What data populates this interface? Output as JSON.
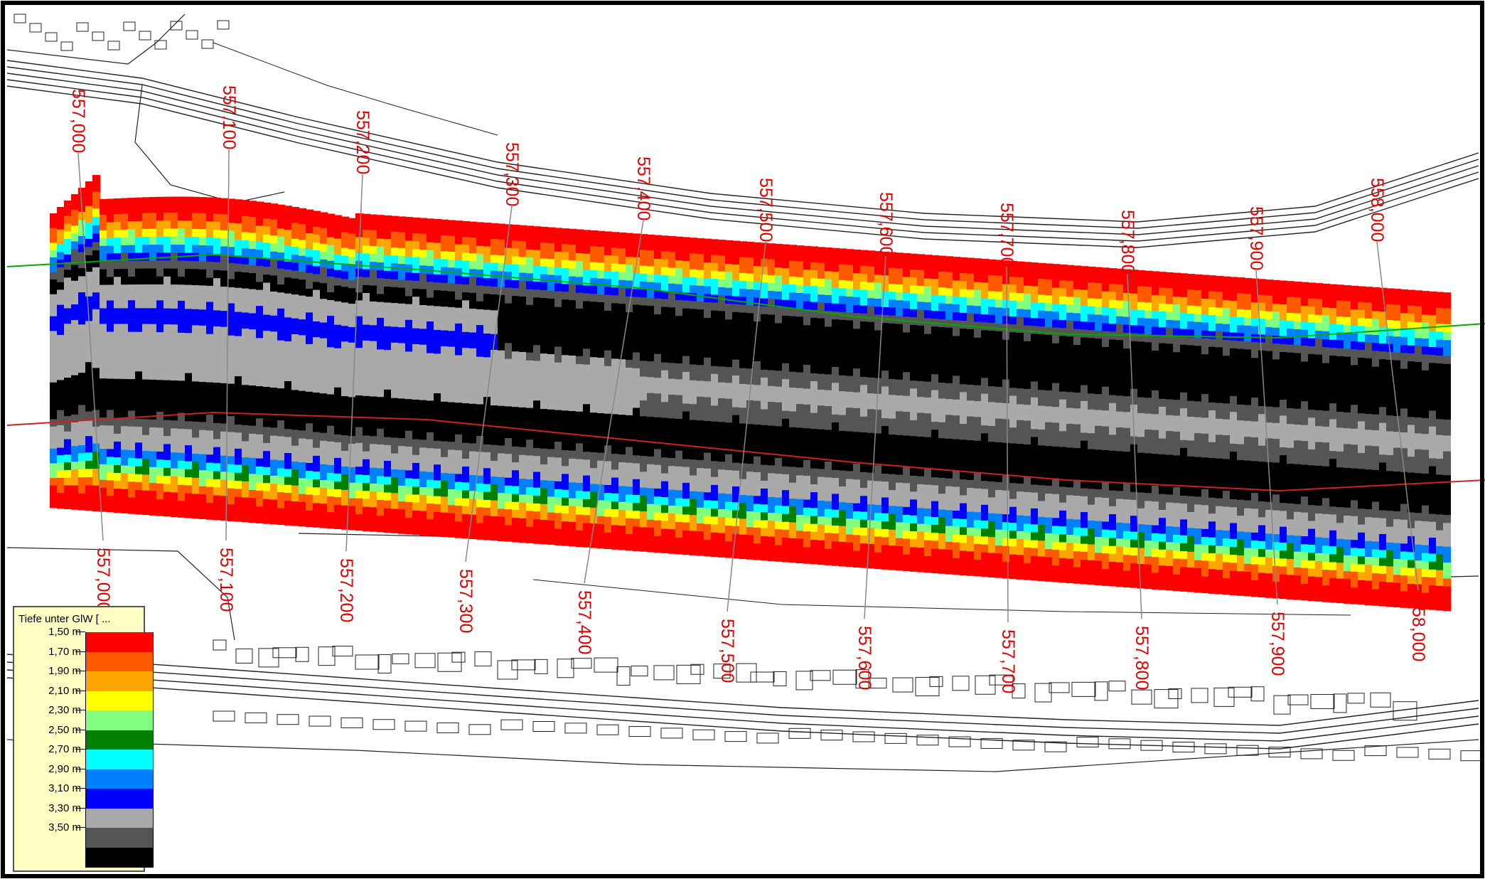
{
  "legend": {
    "title": "Tiefe unter GlW [ ...",
    "classes": [
      {
        "label": "1,50 m",
        "color": "#ff0000"
      },
      {
        "label": "1,70 m",
        "color": "#ff5a00"
      },
      {
        "label": "1,90 m",
        "color": "#ffa500"
      },
      {
        "label": "2,10 m",
        "color": "#ffff00"
      },
      {
        "label": "2,30 m",
        "color": "#80ff80"
      },
      {
        "label": "2,50 m",
        "color": "#008000"
      },
      {
        "label": "2,70 m",
        "color": "#00ffff"
      },
      {
        "label": "2,90 m",
        "color": "#0080ff"
      },
      {
        "label": "3,10 m",
        "color": "#0000ff"
      },
      {
        "label": "3,30 m",
        "color": "#a9a9a9"
      },
      {
        "label": "3,50 m",
        "color": "#555555"
      },
      {
        "label": "",
        "color": "#000000"
      }
    ]
  },
  "stations": [
    {
      "label": "557,000"
    },
    {
      "label": "557,100"
    },
    {
      "label": "557,200"
    },
    {
      "label": "557,300"
    },
    {
      "label": "557,400"
    },
    {
      "label": "557,500"
    },
    {
      "label": "557,600"
    },
    {
      "label": "557,700"
    },
    {
      "label": "557,800"
    },
    {
      "label": "557,900"
    },
    {
      "label": "558,000"
    }
  ],
  "colors": {
    "station_label": "#e00000",
    "axis_green": "#00aa00",
    "axis_red": "#cc2222",
    "profile_line": "#888888",
    "basemap_line": "#222222"
  }
}
